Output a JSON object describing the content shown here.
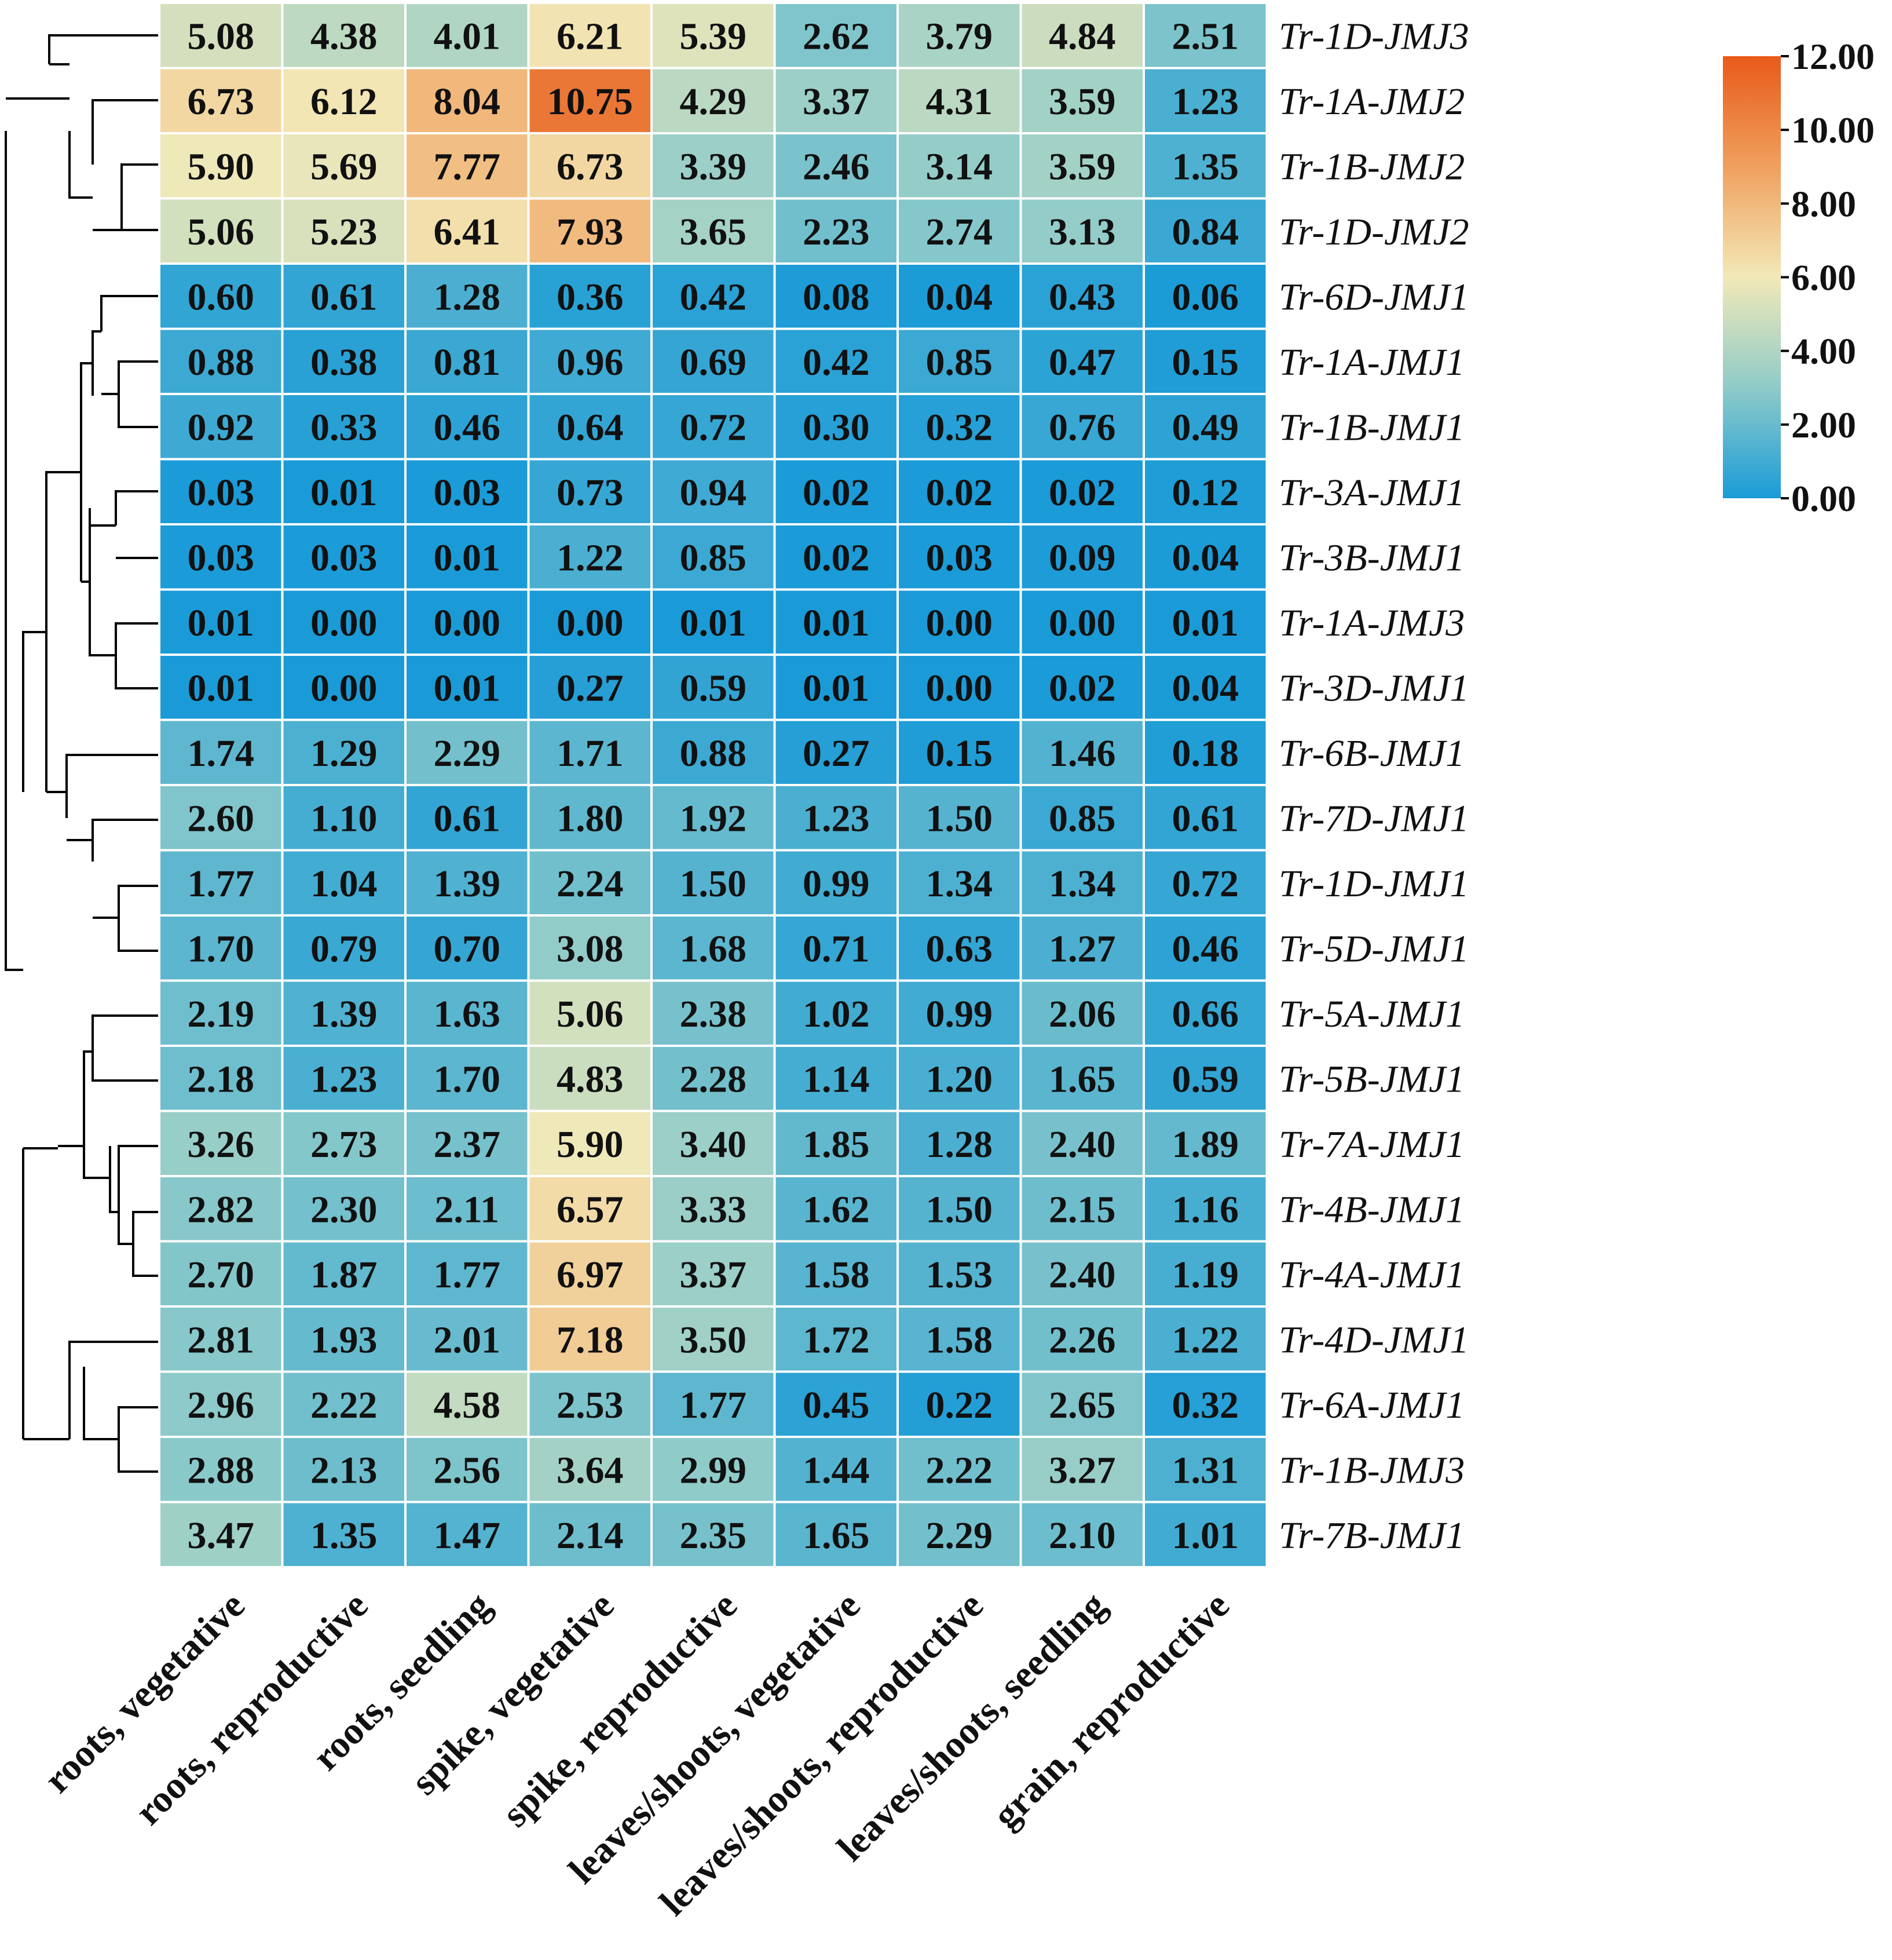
{
  "chart_data": {
    "type": "heatmap",
    "columns": [
      "roots, vegetative",
      "roots, reproductive",
      "roots, seedling",
      "spike, vegetative",
      "spike, reproductive",
      "leaves/shoots, vegetative",
      "leaves/shoots, reproductive",
      "leaves/shoots, seedling",
      "grain, reproductive"
    ],
    "rows": [
      {
        "gene": "Tr-1D-JMJ3",
        "values": [
          5.08,
          4.38,
          4.01,
          6.21,
          5.39,
          2.62,
          3.79,
          4.84,
          2.51
        ]
      },
      {
        "gene": "Tr-1A-JMJ2",
        "values": [
          6.73,
          6.12,
          8.04,
          10.75,
          4.29,
          3.37,
          4.31,
          3.59,
          1.23
        ]
      },
      {
        "gene": "Tr-1B-JMJ2",
        "values": [
          5.9,
          5.69,
          7.77,
          6.73,
          3.39,
          2.46,
          3.14,
          3.59,
          1.35
        ]
      },
      {
        "gene": "Tr-1D-JMJ2",
        "values": [
          5.06,
          5.23,
          6.41,
          7.93,
          3.65,
          2.23,
          2.74,
          3.13,
          0.84
        ]
      },
      {
        "gene": "Tr-6D-JMJ1",
        "values": [
          0.6,
          0.61,
          1.28,
          0.36,
          0.42,
          0.08,
          0.04,
          0.43,
          0.06
        ]
      },
      {
        "gene": "Tr-1A-JMJ1",
        "values": [
          0.88,
          0.38,
          0.81,
          0.96,
          0.69,
          0.42,
          0.85,
          0.47,
          0.15
        ]
      },
      {
        "gene": "Tr-1B-JMJ1",
        "values": [
          0.92,
          0.33,
          0.46,
          0.64,
          0.72,
          0.3,
          0.32,
          0.76,
          0.49
        ]
      },
      {
        "gene": "Tr-3A-JMJ1",
        "values": [
          0.03,
          0.01,
          0.03,
          0.73,
          0.94,
          0.02,
          0.02,
          0.02,
          0.12
        ]
      },
      {
        "gene": "Tr-3B-JMJ1",
        "values": [
          0.03,
          0.03,
          0.01,
          1.22,
          0.85,
          0.02,
          0.03,
          0.09,
          0.04
        ]
      },
      {
        "gene": "Tr-1A-JMJ3",
        "values": [
          0.01,
          0.0,
          0.0,
          0.0,
          0.01,
          0.01,
          0.0,
          0.0,
          0.01
        ]
      },
      {
        "gene": "Tr-3D-JMJ1",
        "values": [
          0.01,
          0.0,
          0.01,
          0.27,
          0.59,
          0.01,
          0.0,
          0.02,
          0.04
        ]
      },
      {
        "gene": "Tr-6B-JMJ1",
        "values": [
          1.74,
          1.29,
          2.29,
          1.71,
          0.88,
          0.27,
          0.15,
          1.46,
          0.18
        ]
      },
      {
        "gene": "Tr-7D-JMJ1",
        "values": [
          2.6,
          1.1,
          0.61,
          1.8,
          1.92,
          1.23,
          1.5,
          0.85,
          0.61
        ]
      },
      {
        "gene": "Tr-1D-JMJ1",
        "values": [
          1.77,
          1.04,
          1.39,
          2.24,
          1.5,
          0.99,
          1.34,
          1.34,
          0.72
        ]
      },
      {
        "gene": "Tr-5D-JMJ1",
        "values": [
          1.7,
          0.79,
          0.7,
          3.08,
          1.68,
          0.71,
          0.63,
          1.27,
          0.46
        ]
      },
      {
        "gene": "Tr-5A-JMJ1",
        "values": [
          2.19,
          1.39,
          1.63,
          5.06,
          2.38,
          1.02,
          0.99,
          2.06,
          0.66
        ]
      },
      {
        "gene": "Tr-5B-JMJ1",
        "values": [
          2.18,
          1.23,
          1.7,
          4.83,
          2.28,
          1.14,
          1.2,
          1.65,
          0.59
        ]
      },
      {
        "gene": "Tr-7A-JMJ1",
        "values": [
          3.26,
          2.73,
          2.37,
          5.9,
          3.4,
          1.85,
          1.28,
          2.4,
          1.89
        ]
      },
      {
        "gene": "Tr-4B-JMJ1",
        "values": [
          2.82,
          2.3,
          2.11,
          6.57,
          3.33,
          1.62,
          1.5,
          2.15,
          1.16
        ]
      },
      {
        "gene": "Tr-4A-JMJ1",
        "values": [
          2.7,
          1.87,
          1.77,
          6.97,
          3.37,
          1.58,
          1.53,
          2.4,
          1.19
        ]
      },
      {
        "gene": "Tr-4D-JMJ1",
        "values": [
          2.81,
          1.93,
          2.01,
          7.18,
          3.5,
          1.72,
          1.58,
          2.26,
          1.22
        ]
      },
      {
        "gene": "Tr-6A-JMJ1",
        "values": [
          2.96,
          2.22,
          4.58,
          2.53,
          1.77,
          0.45,
          0.22,
          2.65,
          0.32
        ]
      },
      {
        "gene": "Tr-1B-JMJ3",
        "values": [
          2.88,
          2.13,
          2.56,
          3.64,
          2.99,
          1.44,
          2.22,
          3.27,
          1.31
        ]
      },
      {
        "gene": "Tr-7B-JMJ1",
        "values": [
          3.47,
          1.35,
          1.47,
          2.14,
          2.35,
          1.65,
          2.29,
          2.1,
          1.01
        ]
      }
    ],
    "colorbar": {
      "min": 0,
      "max": 12,
      "tick_labels": [
        "12.00",
        "10.00",
        "8.00",
        "6.00",
        "4.00",
        "2.00",
        "0.00"
      ],
      "colors": [
        "#1a9bd7",
        "#8fcbc9",
        "#f2e9b8",
        "#f0a05e",
        "#e85a1a"
      ]
    }
  }
}
